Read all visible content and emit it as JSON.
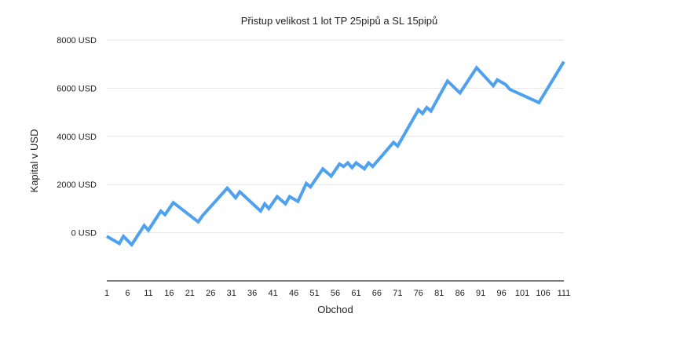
{
  "chart_data": {
    "type": "line",
    "title": "Přistup velikost 1 lot  TP 25pipů a SL 15pipů",
    "xlabel": "Obchod",
    "ylabel": "Kapital v USD",
    "y_ticks": [
      {
        "value": 0,
        "label": "0 USD"
      },
      {
        "value": 2000,
        "label": "2000 USD"
      },
      {
        "value": 4000,
        "label": "4000 USD"
      },
      {
        "value": 6000,
        "label": "6000 USD"
      },
      {
        "value": 8000,
        "label": "8000 USD"
      }
    ],
    "x_ticks": [
      "1",
      "6",
      "11",
      "16",
      "21",
      "26",
      "31",
      "36",
      "41",
      "46",
      "51",
      "56",
      "61",
      "66",
      "71",
      "76",
      "81",
      "86",
      "91",
      "96",
      "101",
      "106",
      "111"
    ],
    "ylim": [
      -2000,
      8000
    ],
    "xlim": [
      1,
      111
    ],
    "grid": true,
    "legend": "none",
    "colors": {
      "line": "#4da1ee",
      "grid": "#e6e6e6",
      "axis": "#333333"
    },
    "series": [
      {
        "x": [
          1,
          4,
          5,
          7,
          10,
          11,
          14,
          15,
          17,
          23,
          24,
          30,
          32,
          33,
          38,
          39,
          40,
          42,
          44,
          45,
          47,
          49,
          50,
          53,
          55,
          57,
          58,
          59,
          60,
          61,
          63,
          64,
          65,
          66,
          67,
          70,
          71,
          76,
          77,
          78,
          79,
          83,
          86,
          90,
          94,
          95,
          97,
          98,
          105,
          111
        ],
        "y": [
          -150,
          -450,
          -150,
          -500,
          300,
          100,
          900,
          750,
          1250,
          450,
          700,
          1850,
          1450,
          1700,
          900,
          1200,
          1000,
          1500,
          1200,
          1500,
          1300,
          2050,
          1900,
          2650,
          2350,
          2850,
          2750,
          2900,
          2700,
          2900,
          2650,
          2900,
          2750,
          2950,
          3150,
          3750,
          3600,
          5100,
          4950,
          5200,
          5050,
          6300,
          5800,
          6850,
          6100,
          6350,
          6150,
          5950,
          5400,
          7100
        ]
      }
    ]
  }
}
